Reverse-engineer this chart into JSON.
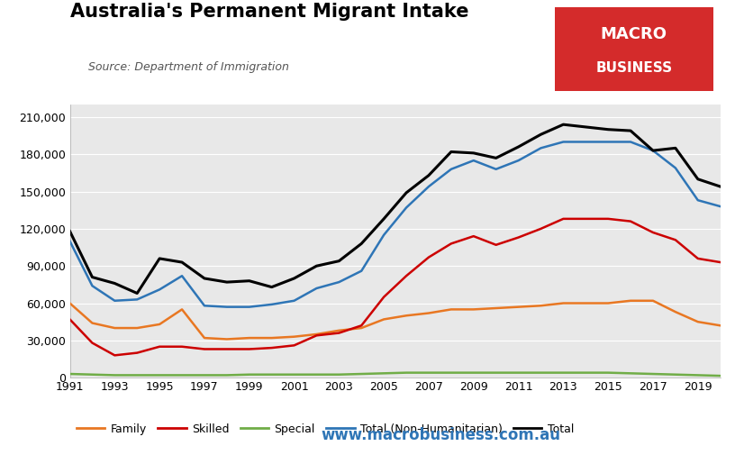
{
  "title": "Australia's Permanent Migrant Intake",
  "subtitle": "Source: Department of Immigration",
  "website": "www.macrobusiness.com.au",
  "years": [
    1991,
    1992,
    1993,
    1994,
    1995,
    1996,
    1997,
    1998,
    1999,
    2000,
    2001,
    2002,
    2003,
    2004,
    2005,
    2006,
    2007,
    2008,
    2009,
    2010,
    2011,
    2012,
    2013,
    2014,
    2015,
    2016,
    2017,
    2018,
    2019,
    2020
  ],
  "family": [
    60000,
    44000,
    40000,
    40000,
    43000,
    55000,
    32000,
    31000,
    32000,
    32000,
    33000,
    35000,
    38000,
    40000,
    47000,
    50000,
    52000,
    55000,
    55000,
    56000,
    57000,
    58000,
    60000,
    60000,
    60000,
    62000,
    62000,
    53000,
    45000,
    42000
  ],
  "skilled": [
    47000,
    28000,
    18000,
    20000,
    25000,
    25000,
    23000,
    23000,
    23000,
    24000,
    26000,
    34000,
    36000,
    42000,
    65000,
    82000,
    97000,
    108000,
    114000,
    107000,
    113000,
    120000,
    128000,
    128000,
    128000,
    126000,
    117000,
    111000,
    96000,
    93000
  ],
  "special": [
    3000,
    2500,
    2000,
    2000,
    2000,
    2000,
    2000,
    2000,
    2500,
    2500,
    2500,
    2500,
    2500,
    3000,
    3500,
    4000,
    4000,
    4000,
    4000,
    4000,
    4000,
    4000,
    4000,
    4000,
    4000,
    3500,
    3000,
    2500,
    2000,
    1500
  ],
  "total_non_hum": [
    110000,
    74000,
    62000,
    63000,
    71000,
    82000,
    58000,
    57000,
    57000,
    59000,
    62000,
    72000,
    77000,
    86000,
    115000,
    137000,
    154000,
    168000,
    175000,
    168000,
    175000,
    185000,
    190000,
    190000,
    190000,
    190000,
    183000,
    169000,
    143000,
    138000
  ],
  "total": [
    118000,
    81000,
    76000,
    68000,
    96000,
    93000,
    80000,
    77000,
    78000,
    73000,
    80000,
    90000,
    94000,
    108000,
    128000,
    149000,
    163000,
    182000,
    181000,
    177000,
    186000,
    196000,
    204000,
    202000,
    200000,
    199000,
    183000,
    185000,
    160000,
    154000
  ],
  "colors": {
    "family": "#E87722",
    "skilled": "#CC0000",
    "special": "#70AD47",
    "total_non_hum": "#2E75B6",
    "total": "#000000"
  },
  "ylim": [
    0,
    220000
  ],
  "yticks": [
    0,
    30000,
    60000,
    90000,
    120000,
    150000,
    180000,
    210000
  ],
  "xlim": [
    1991,
    2020
  ],
  "xticks": [
    1991,
    1993,
    1995,
    1997,
    1999,
    2001,
    2003,
    2005,
    2007,
    2009,
    2011,
    2013,
    2015,
    2017,
    2019
  ],
  "background_color": "#E8E8E8",
  "logo_bg": "#D42B2B",
  "logo_text1": "MACRO",
  "logo_text2": "BUSINESS"
}
